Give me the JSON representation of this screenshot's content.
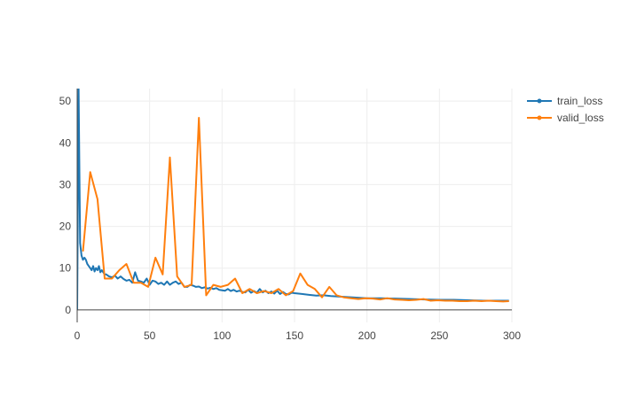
{
  "chart_data": {
    "type": "line",
    "title": "",
    "xlabel": "",
    "ylabel": "",
    "xlim": [
      0,
      300
    ],
    "ylim": [
      -3,
      53
    ],
    "x_ticks": [
      0,
      50,
      100,
      150,
      200,
      250,
      300
    ],
    "y_ticks": [
      0,
      10,
      20,
      30,
      40,
      50
    ],
    "grid": true,
    "legend": "top-right",
    "series": [
      {
        "name": "train_loss",
        "color": "#1f77b4",
        "x": [
          0,
          1,
          2,
          3,
          4,
          5,
          6,
          7,
          8,
          9,
          10,
          11,
          12,
          13,
          14,
          15,
          16,
          17,
          18,
          19,
          20,
          22,
          24,
          26,
          28,
          30,
          32,
          34,
          36,
          38,
          40,
          42,
          44,
          46,
          48,
          50,
          52,
          54,
          56,
          58,
          60,
          62,
          64,
          66,
          68,
          70,
          72,
          74,
          76,
          78,
          80,
          82,
          84,
          86,
          88,
          90,
          92,
          94,
          96,
          98,
          100,
          102,
          104,
          106,
          108,
          110,
          112,
          114,
          116,
          118,
          120,
          122,
          124,
          126,
          128,
          130,
          132,
          134,
          136,
          138,
          140,
          142,
          144,
          146,
          148,
          150,
          155,
          160,
          165,
          170,
          175,
          180,
          185,
          190,
          195,
          200,
          210,
          220,
          230,
          240,
          250,
          260,
          270,
          280,
          290,
          298
        ],
        "y": [
          0,
          53,
          16,
          13,
          12,
          12.5,
          12,
          11,
          10.5,
          10,
          9.5,
          10.5,
          9.2,
          10,
          9.5,
          10.5,
          9,
          9.5,
          9,
          8.5,
          8.5,
          8,
          7.8,
          8.2,
          7.5,
          8,
          7.4,
          7,
          7.2,
          6.5,
          9,
          7,
          6.8,
          6.5,
          7.5,
          6,
          7,
          6.8,
          6.2,
          6.5,
          6,
          6.8,
          6,
          6.5,
          6.8,
          6.2,
          6.5,
          5.5,
          5.5,
          6,
          5.8,
          5.5,
          5.6,
          5.2,
          5.4,
          5.1,
          5.3,
          5,
          5.2,
          4.8,
          4.7,
          4.6,
          5,
          4.5,
          4.8,
          4.4,
          4.6,
          4.3,
          4.2,
          4.8,
          4.1,
          4.5,
          4.1,
          5,
          4.2,
          4.6,
          4,
          4.4,
          3.9,
          4.6,
          3.8,
          4.3,
          3.8,
          3.7,
          4.1,
          4,
          3.8,
          3.6,
          3.4,
          3.5,
          3.3,
          3.2,
          3.1,
          3,
          2.9,
          2.8,
          2.8,
          2.7,
          2.6,
          2.5,
          2.4,
          2.4,
          2.3,
          2.2,
          2.2,
          2.2
        ]
      },
      {
        "name": "valid_loss",
        "color": "#ff7f0e",
        "x": [
          4,
          9,
          14,
          19,
          24,
          29,
          34,
          39,
          44,
          49,
          54,
          59,
          64,
          69,
          74,
          79,
          84,
          89,
          94,
          99,
          104,
          109,
          114,
          119,
          124,
          129,
          134,
          139,
          144,
          149,
          154,
          159,
          164,
          169,
          174,
          179,
          184,
          189,
          194,
          199,
          204,
          209,
          214,
          219,
          224,
          229,
          234,
          239,
          244,
          249,
          254,
          259,
          264,
          269,
          274,
          279,
          284,
          289,
          294,
          298
        ],
        "y": [
          14,
          33,
          26.5,
          7.5,
          7.5,
          9.5,
          11,
          6.5,
          6.5,
          5.5,
          12.5,
          8.5,
          36.5,
          8,
          5.5,
          6,
          46,
          3.5,
          6,
          5.5,
          6,
          7.5,
          4,
          5,
          4,
          4.5,
          4,
          5,
          3.5,
          4.5,
          8.7,
          6,
          5,
          3,
          5.5,
          3.5,
          3,
          2.8,
          2.6,
          2.8,
          2.7,
          2.5,
          2.8,
          2.5,
          2.4,
          2.3,
          2.4,
          2.6,
          2.2,
          2.3,
          2.2,
          2.2,
          2.1,
          2.1,
          2.2,
          2.1,
          2.2,
          2.1,
          2,
          2.1
        ]
      }
    ]
  }
}
